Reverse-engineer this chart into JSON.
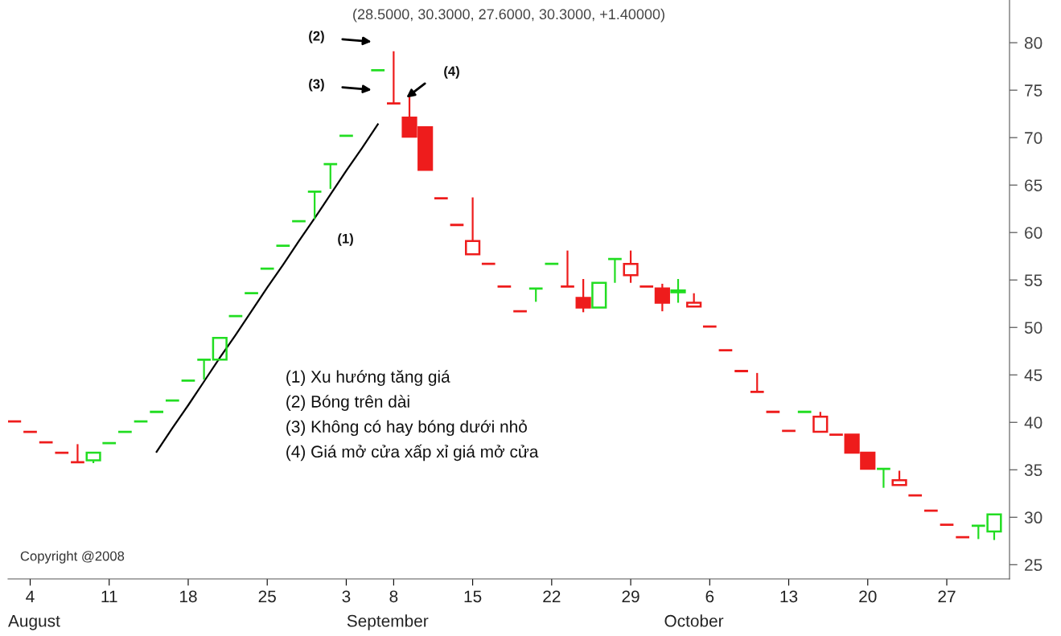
{
  "chart_data": {
    "type": "candlestick",
    "title": "(28.5000, 30.3000, 27.6000, 30.3000, +1.40000)",
    "categories": [
      null,
      "4",
      null,
      null,
      null,
      null,
      "11",
      null,
      null,
      null,
      null,
      "18",
      null,
      null,
      null,
      null,
      "25",
      null,
      null,
      null,
      null,
      "3",
      null,
      null,
      "8",
      null,
      null,
      null,
      null,
      "15",
      null,
      null,
      null,
      null,
      "22",
      null,
      null,
      null,
      null,
      "29",
      null,
      null,
      null,
      null,
      "6",
      null,
      null,
      null,
      null,
      "13",
      null,
      null,
      null,
      null,
      "20",
      null,
      null,
      null,
      null,
      "27",
      null,
      null,
      null
    ],
    "ohlc": [
      [
        40.1,
        40.1,
        40.1,
        40.1
      ],
      [
        39.0,
        39.0,
        39.0,
        39.0
      ],
      [
        37.9,
        37.9,
        37.9,
        37.9
      ],
      [
        36.8,
        36.8,
        36.8,
        36.8
      ],
      [
        35.8,
        37.7,
        35.8,
        35.8
      ],
      [
        36.0,
        36.8,
        35.7,
        36.8
      ],
      [
        37.8,
        37.8,
        37.8,
        37.8
      ],
      [
        39.0,
        39.0,
        39.0,
        39.0
      ],
      [
        40.1,
        40.1,
        40.1,
        40.1
      ],
      [
        41.1,
        41.1,
        41.1,
        41.1
      ],
      [
        42.3,
        42.3,
        42.3,
        42.3
      ],
      [
        44.4,
        44.4,
        44.4,
        44.4
      ],
      [
        46.6,
        46.6,
        44.5,
        46.6
      ],
      [
        46.6,
        48.9,
        46.6,
        48.9
      ],
      [
        51.2,
        51.2,
        51.2,
        51.2
      ],
      [
        53.6,
        53.6,
        53.6,
        53.6
      ],
      [
        56.2,
        56.2,
        56.2,
        56.2
      ],
      [
        58.6,
        58.6,
        58.6,
        58.6
      ],
      [
        61.2,
        61.2,
        61.2,
        61.2
      ],
      [
        64.3,
        64.3,
        61.4,
        64.3
      ],
      [
        67.2,
        67.2,
        64.6,
        67.2
      ],
      [
        70.2,
        70.2,
        70.2,
        70.2
      ],
      null,
      [
        77.1,
        77.1,
        77.1,
        77.1
      ],
      [
        73.6,
        79.1,
        73.6,
        73.6
      ],
      [
        72.1,
        74.3,
        70.1,
        70.1
      ],
      [
        71.1,
        71.1,
        66.6,
        66.6
      ],
      [
        63.6,
        63.6,
        63.6,
        63.6
      ],
      [
        60.8,
        60.8,
        60.8,
        60.8
      ],
      [
        57.7,
        63.7,
        57.7,
        59.1
      ],
      [
        56.7,
        56.7,
        56.7,
        56.7
      ],
      [
        54.3,
        54.3,
        54.3,
        54.3
      ],
      [
        51.7,
        51.7,
        51.7,
        51.7
      ],
      [
        54.1,
        54.1,
        52.7,
        54.1
      ],
      [
        56.7,
        56.7,
        56.7,
        56.7
      ],
      [
        54.3,
        58.1,
        54.3,
        54.3
      ],
      [
        53.1,
        55.1,
        51.6,
        52.1
      ],
      [
        52.1,
        54.7,
        52.1,
        54.7
      ],
      [
        57.2,
        57.2,
        54.7,
        57.2
      ],
      [
        55.5,
        58.1,
        54.7,
        56.7
      ],
      [
        54.3,
        54.3,
        54.3,
        54.3
      ],
      [
        54.1,
        54.6,
        51.7,
        52.6
      ],
      [
        53.7,
        55.1,
        52.6,
        53.9
      ],
      [
        52.2,
        53.6,
        52.2,
        52.6
      ],
      [
        50.1,
        50.1,
        50.1,
        50.1
      ],
      [
        47.6,
        47.6,
        47.6,
        47.6
      ],
      [
        45.4,
        45.4,
        45.4,
        45.4
      ],
      [
        43.2,
        45.2,
        43.2,
        43.2
      ],
      [
        41.1,
        41.1,
        41.1,
        41.1
      ],
      [
        39.1,
        39.1,
        39.1,
        39.1
      ],
      [
        41.1,
        41.1,
        41.1,
        41.1
      ],
      [
        39.0,
        41.1,
        39.0,
        40.6
      ],
      [
        38.7,
        38.7,
        38.7,
        38.7
      ],
      [
        38.7,
        38.7,
        36.8,
        36.8
      ],
      [
        36.8,
        36.8,
        35.1,
        35.1
      ],
      [
        35.1,
        35.1,
        33.1,
        35.1
      ],
      [
        33.4,
        34.9,
        33.4,
        33.9
      ],
      [
        32.3,
        32.3,
        32.3,
        32.3
      ],
      [
        30.7,
        30.7,
        30.7,
        30.7
      ],
      [
        29.2,
        29.2,
        29.2,
        29.2
      ],
      [
        27.9,
        27.9,
        27.9,
        27.9
      ],
      [
        29.1,
        29.1,
        27.7,
        29.1
      ],
      [
        28.5,
        30.3,
        27.6,
        30.3
      ]
    ],
    "colors": [
      "#ee1c1c",
      "#ee1c1c",
      "#ee1c1c",
      "#ee1c1c",
      "#ee1c1c",
      "#22dd22",
      "#22dd22",
      "#22dd22",
      "#22dd22",
      "#22dd22",
      "#22dd22",
      "#22dd22",
      "#22dd22",
      "#22dd22",
      "#22dd22",
      "#22dd22",
      "#22dd22",
      "#22dd22",
      "#22dd22",
      "#22dd22",
      "#22dd22",
      "#22dd22",
      null,
      "#22dd22",
      "#ee1c1c",
      "#ee1c1c",
      "#ee1c1c",
      "#ee1c1c",
      "#ee1c1c",
      "#ee1c1c",
      "#ee1c1c",
      "#ee1c1c",
      "#ee1c1c",
      "#22dd22",
      "#22dd22",
      "#ee1c1c",
      "#ee1c1c",
      "#22dd22",
      "#22dd22",
      "#ee1c1c",
      "#ee1c1c",
      "#ee1c1c",
      "#22dd22",
      "#ee1c1c",
      "#ee1c1c",
      "#ee1c1c",
      "#ee1c1c",
      "#ee1c1c",
      "#ee1c1c",
      "#ee1c1c",
      "#22dd22",
      "#ee1c1c",
      "#ee1c1c",
      "#ee1c1c",
      "#ee1c1c",
      "#22dd22",
      "#ee1c1c",
      "#ee1c1c",
      "#ee1c1c",
      "#ee1c1c",
      "#ee1c1c",
      "#22dd22",
      "#22dd22"
    ],
    "series": [
      {
        "type": "line",
        "color": "#000000",
        "values": [
          null,
          null,
          null,
          null,
          null,
          null,
          null,
          null,
          null,
          36.9,
          39.4,
          41.8,
          44.3,
          46.8,
          49.2,
          51.7,
          54.2,
          56.6,
          59.1,
          61.5,
          64.0,
          66.5,
          68.9,
          71.4,
          null,
          null,
          null,
          null,
          null,
          null,
          null,
          null,
          null,
          null,
          null,
          null,
          null,
          null,
          null,
          null,
          null,
          null,
          null,
          null,
          null,
          null,
          null,
          null,
          null,
          null,
          null,
          null,
          null,
          null,
          null,
          null,
          null,
          null,
          null,
          null,
          null,
          null,
          null
        ]
      }
    ],
    "ylim": [
      23.5,
      84.5
    ],
    "yticks": [
      25,
      30,
      35,
      40,
      45,
      50,
      55,
      60,
      65,
      70,
      75,
      80
    ],
    "annotations": [
      "(2)",
      "(3)",
      "(1)",
      "(4)",
      "(1) Xu hướng tăng giá",
      "(2) Bóng trên dài",
      "(3) Không có hay bóng dưới nhỏ",
      "(4) Giá mở cửa xấp xỉ giá mở cửa",
      "Copyright @2008",
      "August",
      "September",
      "October"
    ],
    "grid": false
  }
}
